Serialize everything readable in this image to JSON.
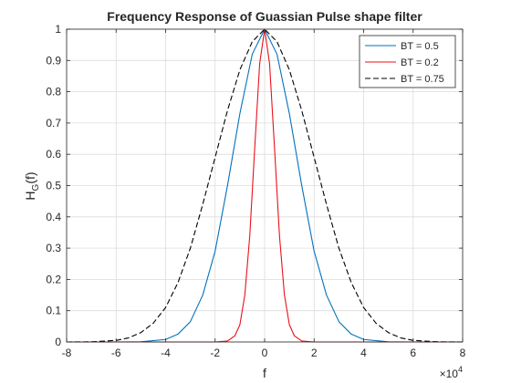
{
  "chart_data": {
    "type": "line",
    "title": "Frequency Response of Guassian Pulse shape filter",
    "xlabel": "f",
    "ylabel_main": "H",
    "ylabel_sub": "G",
    "ylabel_tail": "(f)",
    "x_exponent_base": "×10",
    "x_exponent_power": "4",
    "xlim": [
      -80000,
      80000
    ],
    "ylim": [
      0,
      1
    ],
    "xticks": [
      -80000,
      -60000,
      -40000,
      -20000,
      0,
      20000,
      40000,
      60000,
      80000
    ],
    "xtick_labels": [
      "-8",
      "-6",
      "-4",
      "-2",
      "0",
      "2",
      "4",
      "6",
      "8"
    ],
    "yticks": [
      0,
      0.1,
      0.2,
      0.3,
      0.4,
      0.5,
      0.6,
      0.7,
      0.8,
      0.9,
      1
    ],
    "ytick_labels": [
      "0",
      "0.1",
      "0.2",
      "0.3",
      "0.4",
      "0.5",
      "0.6",
      "0.7",
      "0.8",
      "0.9",
      "1"
    ],
    "grid": true,
    "legend_position": "top-right",
    "series": [
      {
        "name": "BT = 0.5",
        "color": "#0072bd",
        "style": "solid",
        "x": [
          -80000,
          -60000,
          -50000,
          -40000,
          -35000,
          -30000,
          -25000,
          -20000,
          -15000,
          -10000,
          -5000,
          0,
          5000,
          10000,
          15000,
          20000,
          25000,
          30000,
          35000,
          40000,
          50000,
          60000,
          80000
        ],
        "y": [
          0,
          0,
          0.0006,
          0.008,
          0.025,
          0.065,
          0.15,
          0.29,
          0.5,
          0.73,
          0.92,
          1,
          0.92,
          0.73,
          0.5,
          0.29,
          0.15,
          0.065,
          0.025,
          0.008,
          0.0006,
          0,
          0
        ]
      },
      {
        "name": "BT = 0.2",
        "color": "#e8121b",
        "style": "solid",
        "x": [
          -80000,
          -20000,
          -15000,
          -12000,
          -10000,
          -8000,
          -6000,
          -4000,
          -2000,
          0,
          2000,
          4000,
          6000,
          8000,
          10000,
          12000,
          15000,
          20000,
          80000
        ],
        "y": [
          0,
          0,
          0.003,
          0.02,
          0.055,
          0.15,
          0.34,
          0.62,
          0.89,
          1,
          0.89,
          0.62,
          0.34,
          0.15,
          0.055,
          0.02,
          0.003,
          0,
          0
        ]
      },
      {
        "name": "BT = 0.75",
        "color": "#000000",
        "style": "dashed",
        "x": [
          -80000,
          -70000,
          -60000,
          -55000,
          -50000,
          -45000,
          -40000,
          -35000,
          -30000,
          -25000,
          -20000,
          -15000,
          -10000,
          -5000,
          0,
          5000,
          10000,
          15000,
          20000,
          25000,
          30000,
          35000,
          40000,
          45000,
          50000,
          55000,
          60000,
          70000,
          80000
        ],
        "y": [
          0,
          0.0005,
          0.005,
          0.013,
          0.03,
          0.06,
          0.11,
          0.19,
          0.3,
          0.44,
          0.59,
          0.74,
          0.87,
          0.96,
          1,
          0.96,
          0.87,
          0.74,
          0.59,
          0.44,
          0.3,
          0.19,
          0.11,
          0.06,
          0.03,
          0.013,
          0.005,
          0.0005,
          0
        ]
      }
    ]
  }
}
